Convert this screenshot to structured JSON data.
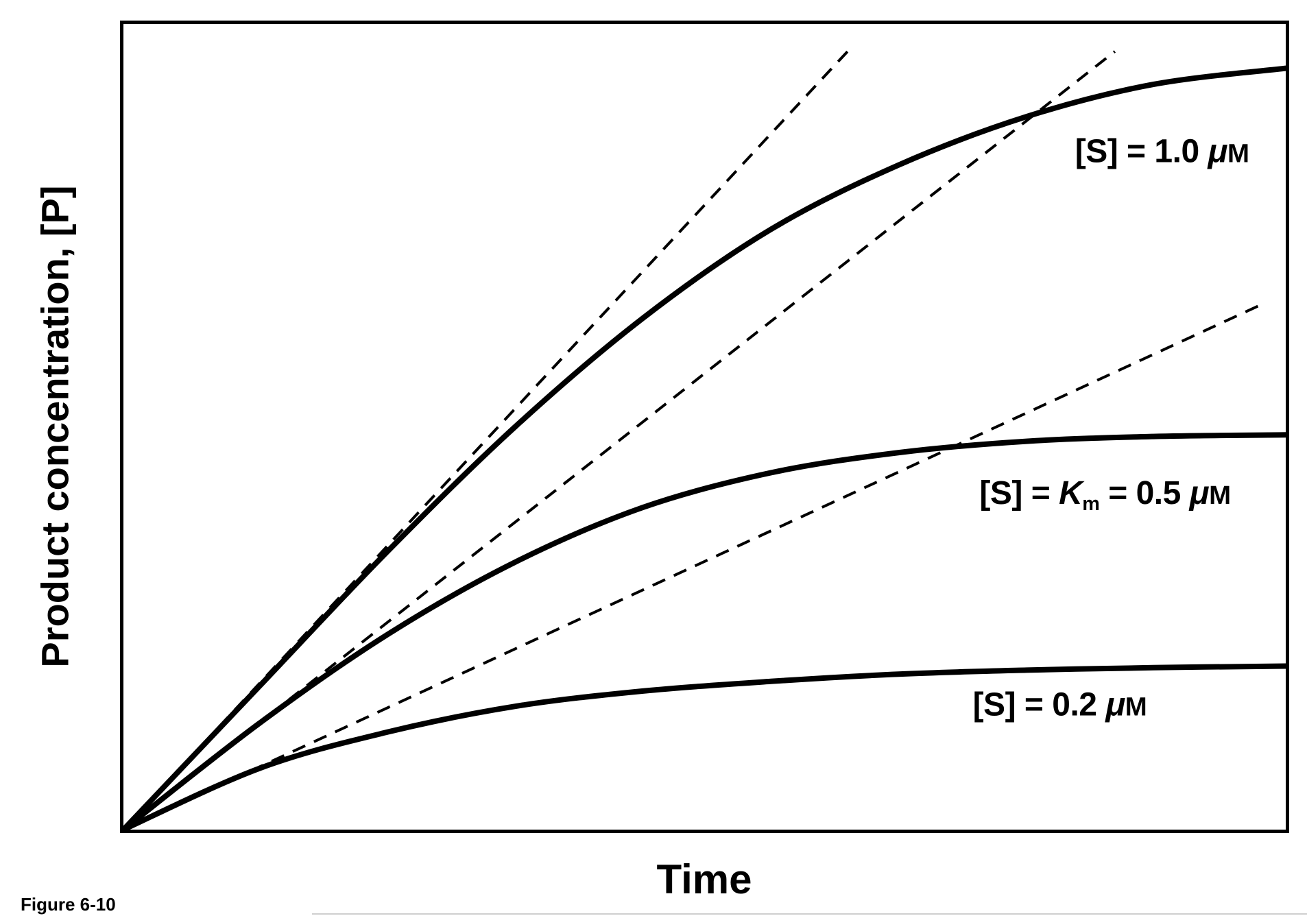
{
  "figure": {
    "caption": "Figure 6-10"
  },
  "chart_data": {
    "type": "line",
    "title": "",
    "xlabel": "Time",
    "ylabel": "Product concentration, [P]",
    "grid": false,
    "legend": "none (curves labeled inline)",
    "axis_ranges": {
      "x": [
        0,
        1
      ],
      "y": [
        0,
        1
      ],
      "note": "qualitative axes, no tick marks or tick labels shown"
    },
    "colors": {
      "stroke": "#000000",
      "background": "#ffffff"
    },
    "series": [
      {
        "id": "progress-1_0uM",
        "kind": "progress-curve",
        "label": "[S] = 1.0 μM",
        "line": "solid",
        "points": [
          [
            0,
            0
          ],
          [
            0.117,
            0.178
          ],
          [
            0.227,
            0.345
          ],
          [
            0.337,
            0.5
          ],
          [
            0.447,
            0.635
          ],
          [
            0.557,
            0.745
          ],
          [
            0.667,
            0.825
          ],
          [
            0.777,
            0.885
          ],
          [
            0.886,
            0.925
          ],
          [
            1,
            0.945
          ]
        ]
      },
      {
        "id": "progress-0_5uM",
        "kind": "progress-curve",
        "label": "[S] = Km = 0.5 μM",
        "line": "solid",
        "points": [
          [
            0,
            0
          ],
          [
            0.117,
            0.132
          ],
          [
            0.227,
            0.242
          ],
          [
            0.337,
            0.332
          ],
          [
            0.447,
            0.4
          ],
          [
            0.557,
            0.443
          ],
          [
            0.667,
            0.468
          ],
          [
            0.777,
            0.482
          ],
          [
            0.886,
            0.488
          ],
          [
            1,
            0.49
          ]
        ]
      },
      {
        "id": "progress-0_2uM",
        "kind": "progress-curve",
        "label": "[S] = 0.2 μM",
        "line": "solid",
        "points": [
          [
            0,
            0
          ],
          [
            0.117,
            0.076
          ],
          [
            0.227,
            0.121
          ],
          [
            0.337,
            0.153
          ],
          [
            0.447,
            0.172
          ],
          [
            0.557,
            0.184
          ],
          [
            0.667,
            0.193
          ],
          [
            0.777,
            0.198
          ],
          [
            0.886,
            0.201
          ],
          [
            1,
            0.203
          ]
        ]
      },
      {
        "id": "v0-1_0uM",
        "kind": "initial-velocity-tangent",
        "label": "",
        "line": "dashed",
        "points": [
          [
            0,
            0
          ],
          [
            0.623,
            0.966
          ]
        ]
      },
      {
        "id": "v0-0_5uM",
        "kind": "initial-velocity-tangent",
        "label": "",
        "line": "dashed",
        "points": [
          [
            0,
            0
          ],
          [
            0.853,
            0.966
          ]
        ]
      },
      {
        "id": "v0-0_2uM",
        "kind": "initial-velocity-tangent",
        "label": "",
        "line": "dashed",
        "points": [
          [
            0,
            0
          ],
          [
            0.981,
            0.653
          ]
        ]
      }
    ],
    "labels": [
      {
        "id": "curve-label-1_0uM",
        "plain": "[S] = 1.0 μM",
        "anchor": [
          0.894,
          0.842
        ],
        "segments": [
          {
            "t": "[S] = 1.0 ",
            "s": "b"
          },
          {
            "t": "μ",
            "s": "mu"
          },
          {
            "t": "M",
            "s": "unit"
          }
        ]
      },
      {
        "id": "curve-label-0_5uM",
        "plain": "[S] = Km = 0.5 μM",
        "anchor": [
          0.845,
          0.415
        ],
        "segments": [
          {
            "t": "[S] = ",
            "s": "b"
          },
          {
            "t": "K",
            "s": "bi"
          },
          {
            "t": "m",
            "s": "sub"
          },
          {
            "t": " = 0.5 ",
            "s": "b"
          },
          {
            "t": "μ",
            "s": "mu"
          },
          {
            "t": "M",
            "s": "unit"
          }
        ]
      },
      {
        "id": "curve-label-0_2uM",
        "plain": "[S] = 0.2 μM",
        "anchor": [
          0.806,
          0.155
        ],
        "segments": [
          {
            "t": "[S] = 0.2 ",
            "s": "b"
          },
          {
            "t": "μ",
            "s": "mu"
          },
          {
            "t": "M",
            "s": "unit"
          }
        ]
      }
    ]
  }
}
